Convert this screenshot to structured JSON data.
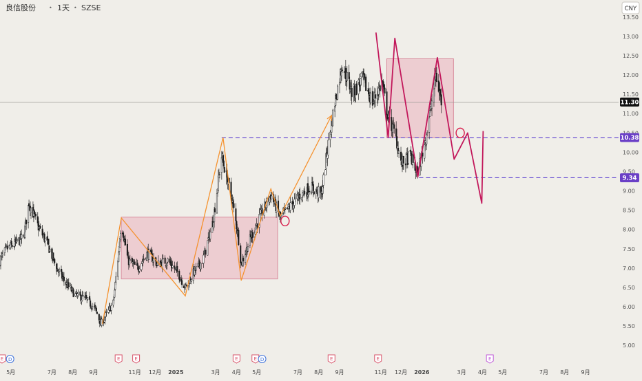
{
  "header": {
    "symbol": "良信股份",
    "interval": "1天",
    "exchange": "SZSE",
    "separator": "•"
  },
  "currency_button": {
    "label": "CNY"
  },
  "colors": {
    "background": "#f0eee9",
    "candle": "#1f1f1f",
    "orange_path": "#f5922f",
    "crimson_path": "#c2185b",
    "zone_fill": "#e8a4b4",
    "zone_stroke": "#d88a9c",
    "dashed_level": "#5b3fd0",
    "level_badge": "#6a3fc6",
    "last_price_badge": "#111111",
    "event_earnings": "#d9546b",
    "event_dividend": "#3b6fd9",
    "event_future": "#c05bd9"
  },
  "chart_data": {
    "type": "candlestick",
    "title": "",
    "y_axis": {
      "range": [
        4.95,
        13.55
      ],
      "side": "right",
      "ticks": [
        "5.00",
        "5.50",
        "6.00",
        "6.50",
        "7.00",
        "7.50",
        "8.00",
        "8.50",
        "9.00",
        "9.50",
        "10.00",
        "10.50",
        "11.00",
        "11.50",
        "12.00",
        "12.50",
        "13.00",
        "13.50"
      ]
    },
    "x_axis": {
      "range": [
        "2024-04-15",
        "2026-10-20"
      ],
      "ticks": [
        {
          "date": "2024-05-01",
          "label": "5月"
        },
        {
          "date": "2024-07-01",
          "label": "7月"
        },
        {
          "date": "2024-08-01",
          "label": "8月"
        },
        {
          "date": "2024-09-01",
          "label": "9月"
        },
        {
          "date": "2024-11-01",
          "label": "11月"
        },
        {
          "date": "2024-12-01",
          "label": "12月"
        },
        {
          "date": "2025-01-01",
          "label": "2025"
        },
        {
          "date": "2025-03-01",
          "label": "3月"
        },
        {
          "date": "2025-04-01",
          "label": "4月"
        },
        {
          "date": "2025-05-01",
          "label": "5月"
        },
        {
          "date": "2025-07-01",
          "label": "7月"
        },
        {
          "date": "2025-08-01",
          "label": "8月"
        },
        {
          "date": "2025-09-01",
          "label": "9月"
        },
        {
          "date": "2025-11-01",
          "label": "11月"
        },
        {
          "date": "2025-12-01",
          "label": "12月"
        },
        {
          "date": "2026-01-01",
          "label": "2026"
        },
        {
          "date": "2026-03-01",
          "label": "3月"
        },
        {
          "date": "2026-04-01",
          "label": "4月"
        },
        {
          "date": "2026-05-01",
          "label": "5月"
        },
        {
          "date": "2026-07-01",
          "label": "7月"
        },
        {
          "date": "2026-08-01",
          "label": "8月"
        },
        {
          "date": "2026-09-01",
          "label": "9月"
        }
      ]
    },
    "price_anchors": [
      {
        "date": "2024-04-15",
        "price": 7.2
      },
      {
        "date": "2024-04-25",
        "price": 7.5
      },
      {
        "date": "2024-05-05",
        "price": 7.6
      },
      {
        "date": "2024-05-20",
        "price": 7.8
      },
      {
        "date": "2024-05-28",
        "price": 8.7
      },
      {
        "date": "2024-06-10",
        "price": 8.1
      },
      {
        "date": "2024-06-25",
        "price": 7.6
      },
      {
        "date": "2024-07-08",
        "price": 7.0
      },
      {
        "date": "2024-07-22",
        "price": 6.6
      },
      {
        "date": "2024-08-05",
        "price": 6.3
      },
      {
        "date": "2024-08-20",
        "price": 6.2
      },
      {
        "date": "2024-09-03",
        "price": 5.95
      },
      {
        "date": "2024-09-12",
        "price": 5.55
      },
      {
        "date": "2024-09-20",
        "price": 5.8
      },
      {
        "date": "2024-09-30",
        "price": 6.1
      },
      {
        "date": "2024-10-08",
        "price": 7.4
      },
      {
        "date": "2024-10-12",
        "price": 8.2
      },
      {
        "date": "2024-10-22",
        "price": 7.2
      },
      {
        "date": "2024-11-05",
        "price": 7.0
      },
      {
        "date": "2024-11-20",
        "price": 7.4
      },
      {
        "date": "2024-12-05",
        "price": 7.1
      },
      {
        "date": "2024-12-20",
        "price": 7.2
      },
      {
        "date": "2025-01-05",
        "price": 6.85
      },
      {
        "date": "2025-01-15",
        "price": 6.5
      },
      {
        "date": "2025-01-28",
        "price": 6.9
      },
      {
        "date": "2025-02-10",
        "price": 7.2
      },
      {
        "date": "2025-02-25",
        "price": 8.2
      },
      {
        "date": "2025-03-10",
        "price": 9.9
      },
      {
        "date": "2025-03-25",
        "price": 8.8
      },
      {
        "date": "2025-04-03",
        "price": 7.9
      },
      {
        "date": "2025-04-08",
        "price": 7.1
      },
      {
        "date": "2025-04-20",
        "price": 7.7
      },
      {
        "date": "2025-05-05",
        "price": 8.3
      },
      {
        "date": "2025-05-22",
        "price": 8.9
      },
      {
        "date": "2025-06-05",
        "price": 8.3
      },
      {
        "date": "2025-06-20",
        "price": 8.6
      },
      {
        "date": "2025-07-05",
        "price": 8.9
      },
      {
        "date": "2025-07-20",
        "price": 9.1
      },
      {
        "date": "2025-08-05",
        "price": 8.9
      },
      {
        "date": "2025-08-15",
        "price": 10.2
      },
      {
        "date": "2025-08-25",
        "price": 11.3
      },
      {
        "date": "2025-09-05",
        "price": 12.3
      },
      {
        "date": "2025-09-20",
        "price": 11.5
      },
      {
        "date": "2025-10-05",
        "price": 11.9
      },
      {
        "date": "2025-10-20",
        "price": 11.3
      },
      {
        "date": "2025-11-03",
        "price": 11.8
      },
      {
        "date": "2025-11-12",
        "price": 10.9
      },
      {
        "date": "2025-11-22",
        "price": 10.5
      },
      {
        "date": "2025-12-02",
        "price": 9.7
      },
      {
        "date": "2025-12-15",
        "price": 9.9
      },
      {
        "date": "2025-12-25",
        "price": 9.45
      },
      {
        "date": "2026-01-05",
        "price": 10.2
      },
      {
        "date": "2026-01-15",
        "price": 11.2
      },
      {
        "date": "2026-01-22",
        "price": 12.0
      },
      {
        "date": "2026-01-30",
        "price": 11.3
      }
    ],
    "horizontal_levels": [
      {
        "price": 10.38,
        "label": "10.38",
        "style": "dashed",
        "from": "2025-03-10"
      },
      {
        "price": 9.34,
        "label": "9.34",
        "style": "dashed",
        "from": "2025-12-28"
      }
    ],
    "last_price": {
      "price": 11.3,
      "label": "11.30"
    },
    "zones": [
      {
        "x1": "2024-10-12",
        "x2": "2025-06-01",
        "y1": 6.72,
        "y2": 8.32
      },
      {
        "x1": "2025-11-10",
        "x2": "2026-02-17",
        "y1": 10.38,
        "y2": 12.42
      }
    ],
    "orange_path": [
      {
        "date": "2024-09-14",
        "price": 5.55
      },
      {
        "date": "2024-10-12",
        "price": 8.3
      },
      {
        "date": "2025-01-15",
        "price": 6.28
      },
      {
        "date": "2025-03-12",
        "price": 10.38
      },
      {
        "date": "2025-04-08",
        "price": 6.68
      },
      {
        "date": "2025-05-22",
        "price": 9.05
      },
      {
        "date": "2025-06-05",
        "price": 8.35
      },
      {
        "date": "2025-08-20",
        "price": 10.95
      }
    ],
    "orange_arrow_end": {
      "date": "2025-08-20",
      "price": 10.95
    },
    "crimson_path": [
      {
        "date": "2025-10-25",
        "price": 13.1
      },
      {
        "date": "2025-11-12",
        "price": 10.38
      },
      {
        "date": "2025-11-22",
        "price": 12.95
      },
      {
        "date": "2025-12-26",
        "price": 9.36
      },
      {
        "date": "2026-01-24",
        "price": 12.45
      },
      {
        "date": "2026-02-18",
        "price": 9.82
      },
      {
        "date": "2026-03-10",
        "price": 10.5
      },
      {
        "date": "2026-03-31",
        "price": 8.68
      },
      {
        "date": "2026-04-02",
        "price": 10.55
      }
    ],
    "circle_markers": [
      {
        "date": "2025-06-12",
        "price": 8.22,
        "note": "small red circle"
      },
      {
        "date": "2026-02-27",
        "price": 10.5,
        "note": "small red circle"
      }
    ],
    "events": [
      {
        "date": "2024-04-18",
        "type": "E"
      },
      {
        "date": "2024-04-30",
        "type": "D"
      },
      {
        "date": "2024-10-08",
        "type": "E"
      },
      {
        "date": "2024-11-03",
        "type": "E"
      },
      {
        "date": "2025-04-01",
        "type": "E"
      },
      {
        "date": "2025-04-29",
        "type": "E"
      },
      {
        "date": "2025-05-09",
        "type": "D"
      },
      {
        "date": "2025-08-20",
        "type": "E"
      },
      {
        "date": "2025-10-28",
        "type": "E"
      },
      {
        "date": "2026-04-12",
        "type": "E",
        "future": true
      }
    ]
  }
}
